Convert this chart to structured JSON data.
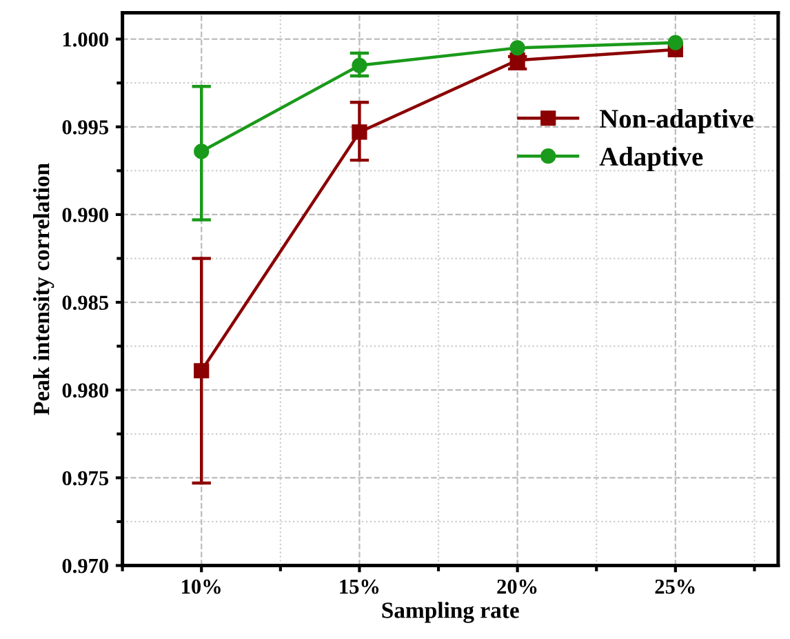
{
  "chart_data": {
    "type": "line",
    "xlabel": "Sampling rate",
    "ylabel": "Peak intensity correlation",
    "categories": [
      "10%",
      "15%",
      "20%",
      "25%"
    ],
    "series": [
      {
        "name": "Non-adaptive",
        "color": "#8b0000",
        "marker": "square",
        "values": [
          0.9811,
          0.9947,
          0.9988,
          0.9994
        ],
        "errors": [
          [
            0.9747,
            0.9875
          ],
          [
            0.9931,
            0.9964
          ],
          [
            0.9983,
            0.999
          ],
          null
        ]
      },
      {
        "name": "Adaptive",
        "color": "#1a9a1a",
        "marker": "circle",
        "values": [
          0.9936,
          0.9985,
          0.9995,
          0.9998
        ],
        "errors": [
          [
            0.9897,
            0.9973
          ],
          [
            0.9979,
            0.9992
          ],
          null,
          null
        ]
      }
    ],
    "ylim": [
      0.97,
      1.0015
    ],
    "yticks": [
      {
        "value": 0.97,
        "label": "0.970"
      },
      {
        "value": 0.975,
        "label": "0.975"
      },
      {
        "value": 0.98,
        "label": "0.980"
      },
      {
        "value": 0.985,
        "label": "0.985"
      },
      {
        "value": 0.99,
        "label": "0.990"
      },
      {
        "value": 0.995,
        "label": "0.995"
      },
      {
        "value": 1.0,
        "label": "1.000"
      }
    ],
    "grid": true,
    "legend": "top right"
  }
}
